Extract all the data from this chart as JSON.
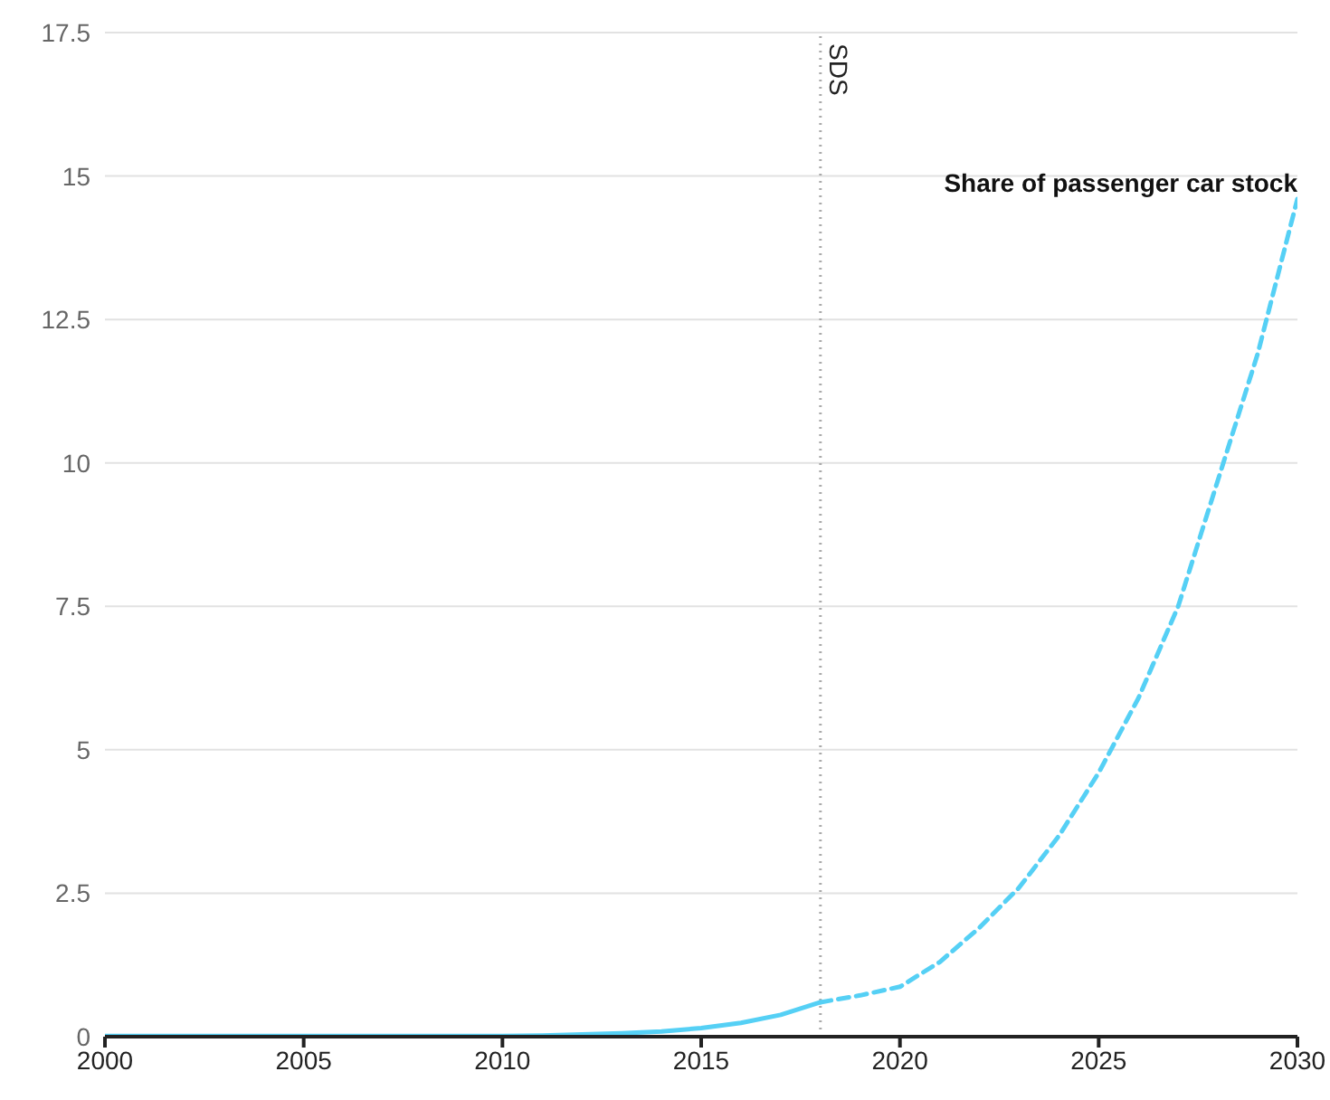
{
  "chart_data": {
    "type": "line",
    "xlim": [
      2000,
      2030
    ],
    "xticks": [
      2000,
      2005,
      2010,
      2015,
      2020,
      2025,
      2030
    ],
    "ylim": [
      0,
      17.5
    ],
    "yticks": [
      0,
      2.5,
      5,
      7.5,
      10,
      12.5,
      15,
      17.5
    ],
    "grid": "y",
    "marker": "none",
    "series": [
      {
        "color": "#55d0f5",
        "line_style": "solid",
        "x": [
          2000,
          2001,
          2002,
          2003,
          2004,
          2005,
          2006,
          2007,
          2008,
          2009,
          2010,
          2011,
          2012,
          2013,
          2014,
          2015,
          2016,
          2017,
          2018
        ],
        "values": [
          0.01,
          0.01,
          0.01,
          0.01,
          0.01,
          0.01,
          0.01,
          0.01,
          0.01,
          0.01,
          0.01,
          0.02,
          0.04,
          0.06,
          0.09,
          0.15,
          0.24,
          0.38,
          0.6
        ]
      },
      {
        "name": "Share of passenger car stock",
        "color": "#55d0f5",
        "line_style": "dashed",
        "x": [
          2018,
          2019,
          2020,
          2021,
          2022,
          2023,
          2024,
          2025,
          2026,
          2027,
          2028,
          2029,
          2030
        ],
        "values": [
          0.6,
          0.72,
          0.87,
          1.3,
          1.9,
          2.6,
          3.5,
          4.6,
          5.9,
          7.5,
          9.7,
          11.9,
          14.6
        ]
      }
    ],
    "ref_lines": [
      {
        "axis": "x",
        "value": 2018,
        "label": "SDS",
        "color": "#aaaaaa",
        "line_style": "dotted"
      }
    ]
  }
}
